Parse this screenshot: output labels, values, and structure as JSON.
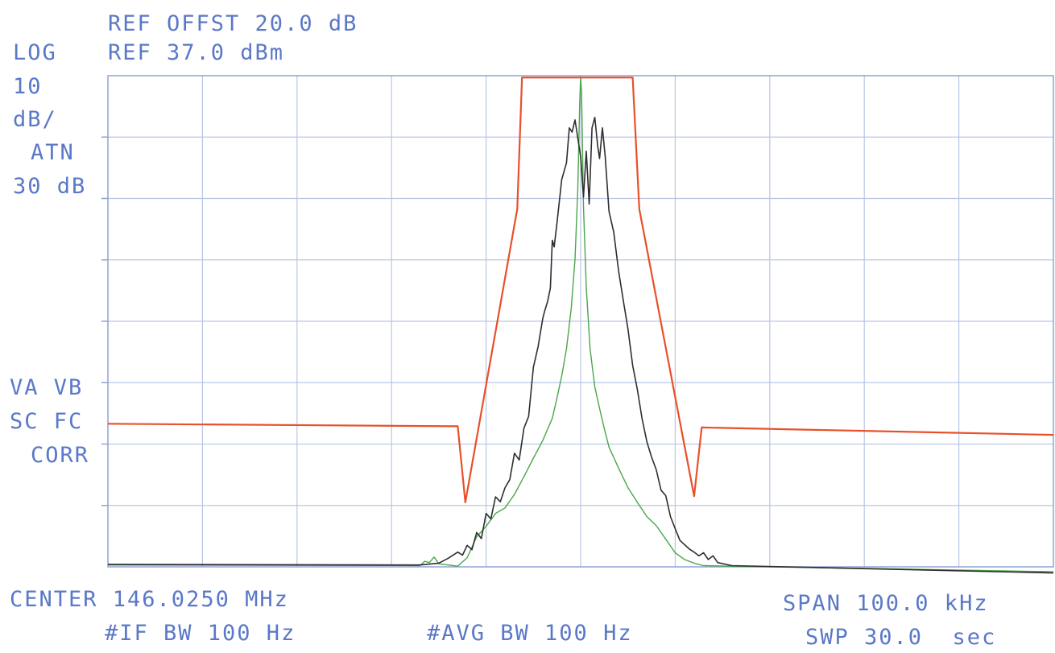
{
  "header": {
    "ref_offset": "REF OFFST 20.0 dB",
    "ref_level": "REF 37.0 dBm"
  },
  "left_annotations": {
    "scale": "LOG",
    "scale_value": "10",
    "scale_unit": "dB/",
    "atten_label": "ATN",
    "atten_value": "30 dB",
    "flags_1": "VA VB",
    "flags_2": "SC FC",
    "flags_3": "CORR"
  },
  "footer": {
    "center": "CENTER 146.0250 MHz",
    "if_bw": "#IF BW 100 Hz",
    "avg_bw": "#AVG BW 100 Hz",
    "span": "SPAN 100.0 kHz",
    "sweep": "SWP 30.0  sec"
  },
  "colors": {
    "text": "#5a78c8",
    "grid": "#b9c6e4",
    "frame": "#8ea3d6",
    "mask": "#e8502a",
    "measured": "#2e2e2e",
    "reference": "#4aa64a"
  },
  "chart_data": {
    "type": "line",
    "x_unit": "kHz offset from center",
    "y_unit": "dB below reference",
    "xlim": [
      -50,
      50
    ],
    "ylim": [
      -80,
      0
    ],
    "grid": true,
    "divisions": {
      "x": 10,
      "y": 8
    },
    "series": [
      {
        "name": "",
        "role": "mask",
        "points": [
          [
            -50,
            -56.7
          ],
          [
            -13,
            -57.1
          ],
          [
            -12.2,
            -69.5
          ],
          [
            -6.7,
            -21.7
          ],
          [
            -6.2,
            -0.3
          ],
          [
            5.5,
            -0.3
          ],
          [
            6.2,
            -21.7
          ],
          [
            12,
            -68.5
          ],
          [
            12.8,
            -57.3
          ],
          [
            50,
            -58.5
          ]
        ]
      },
      {
        "name": "",
        "role": "measured",
        "points": [
          [
            -50,
            -79.6
          ],
          [
            -17,
            -79.7
          ],
          [
            -15,
            -79.4
          ],
          [
            -14,
            -78.6
          ],
          [
            -13,
            -77.6
          ],
          [
            -12.5,
            -78.1
          ],
          [
            -12,
            -76.5
          ],
          [
            -11.5,
            -77.2
          ],
          [
            -11,
            -74.4
          ],
          [
            -10.5,
            -75.4
          ],
          [
            -10,
            -71.3
          ],
          [
            -9.5,
            -72.2
          ],
          [
            -9,
            -68.6
          ],
          [
            -8.5,
            -69.4
          ],
          [
            -8,
            -67.1
          ],
          [
            -7.5,
            -65.8
          ],
          [
            -7,
            -61.5
          ],
          [
            -6.5,
            -62.6
          ],
          [
            -6,
            -57.4
          ],
          [
            -5.5,
            -55.5
          ],
          [
            -5,
            -47.5
          ],
          [
            -4.5,
            -44.1
          ],
          [
            -4,
            -39.5
          ],
          [
            -3.8,
            -38.3
          ],
          [
            -3.5,
            -36.8
          ],
          [
            -3.2,
            -34.6
          ],
          [
            -3,
            -26.8
          ],
          [
            -2.8,
            -27.9
          ],
          [
            -2.5,
            -24
          ],
          [
            -2,
            -16.9
          ],
          [
            -1.5,
            -14.2
          ],
          [
            -1.2,
            -8.5
          ],
          [
            -0.9,
            -9.2
          ],
          [
            -0.6,
            -7.2
          ],
          [
            -0.3,
            -10.2
          ],
          [
            0,
            -13.2
          ],
          [
            0.3,
            -19.8
          ],
          [
            0.6,
            -12.3
          ],
          [
            0.9,
            -20.9
          ],
          [
            1.2,
            -8.5
          ],
          [
            1.5,
            -6.8
          ],
          [
            1.8,
            -11.4
          ],
          [
            2,
            -13.5
          ],
          [
            2.3,
            -8.5
          ],
          [
            2.6,
            -13.2
          ],
          [
            3,
            -22.1
          ],
          [
            3.5,
            -25.5
          ],
          [
            4,
            -31.7
          ],
          [
            4.5,
            -36.5
          ],
          [
            5,
            -41.2
          ],
          [
            5.5,
            -47.2
          ],
          [
            6,
            -51.1
          ],
          [
            6.5,
            -55.9
          ],
          [
            7,
            -59.6
          ],
          [
            7.5,
            -62.1
          ],
          [
            8,
            -64.2
          ],
          [
            8.5,
            -67.5
          ],
          [
            9,
            -68.4
          ],
          [
            9.5,
            -71.8
          ],
          [
            10,
            -73.8
          ],
          [
            10.5,
            -75.7
          ],
          [
            11,
            -76.4
          ],
          [
            11.5,
            -77.1
          ],
          [
            12,
            -77.6
          ],
          [
            12.5,
            -78.2
          ],
          [
            13,
            -77.7
          ],
          [
            13.5,
            -78.8
          ],
          [
            14,
            -78.2
          ],
          [
            14.5,
            -79.3
          ],
          [
            16,
            -79.8
          ],
          [
            50,
            -81
          ]
        ]
      },
      {
        "name": "",
        "role": "reference",
        "points": [
          [
            -50,
            -79.7
          ],
          [
            -17,
            -79.8
          ],
          [
            -16.5,
            -79.1
          ],
          [
            -16,
            -79.3
          ],
          [
            -15.5,
            -78.4
          ],
          [
            -15,
            -79.5
          ],
          [
            -13,
            -79.9
          ],
          [
            -12,
            -78.5
          ],
          [
            -11,
            -75.1
          ],
          [
            -10,
            -73.4
          ],
          [
            -9,
            -71.3
          ],
          [
            -8,
            -70.4
          ],
          [
            -7,
            -68.2
          ],
          [
            -6,
            -65.3
          ],
          [
            -5,
            -62.3
          ],
          [
            -4,
            -59.4
          ],
          [
            -3,
            -55.8
          ],
          [
            -2.5,
            -52.5
          ],
          [
            -2,
            -48.9
          ],
          [
            -1.5,
            -44.5
          ],
          [
            -1,
            -37.9
          ],
          [
            -0.6,
            -29.9
          ],
          [
            -0.3,
            -18.4
          ],
          [
            -0.1,
            -4.5
          ],
          [
            0,
            -0.2
          ],
          [
            0.1,
            -3.1
          ],
          [
            0.3,
            -21.3
          ],
          [
            0.6,
            -34.5
          ],
          [
            1,
            -44.5
          ],
          [
            1.5,
            -50.7
          ],
          [
            2,
            -54.2
          ],
          [
            2.5,
            -57.5
          ],
          [
            3,
            -60.5
          ],
          [
            4,
            -63.9
          ],
          [
            5,
            -67.1
          ],
          [
            6,
            -69.5
          ],
          [
            7,
            -71.8
          ],
          [
            8,
            -73.3
          ],
          [
            9,
            -75.5
          ],
          [
            10,
            -77.7
          ],
          [
            11,
            -78.8
          ],
          [
            12,
            -79.4
          ],
          [
            13,
            -79.8
          ],
          [
            50,
            -80.8
          ]
        ]
      }
    ]
  }
}
